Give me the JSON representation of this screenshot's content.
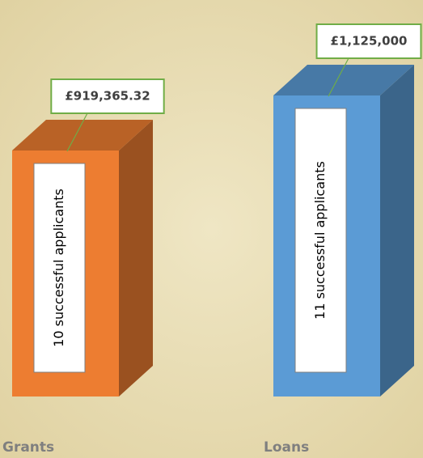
{
  "chart_data": {
    "type": "bar",
    "categories": [
      "Grants",
      "Loans"
    ],
    "values": [
      919365.32,
      1125000
    ],
    "value_labels": [
      "£919,365.32",
      "£1,125,000"
    ],
    "annotations": [
      "10 successful applicants",
      "11 successful applicants"
    ],
    "colors": [
      "#ed7d31",
      "#5b9bd5"
    ],
    "label_border_color": "#70ad47"
  }
}
